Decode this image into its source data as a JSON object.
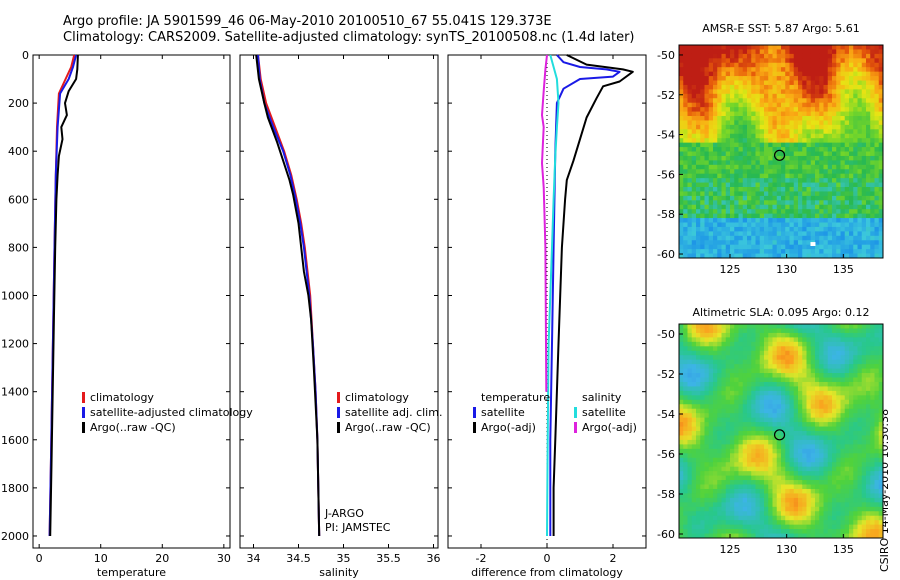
{
  "header": {
    "line1": "Argo profile: JA 5901599_46 06-May-2010 20100510_67 55.041S 129.373E",
    "line2": "Climatology: CARS2009. Satellite-adjusted climatology: synTS_20100508.nc (1.4d later)"
  },
  "footer": {
    "credit": "CSIRO 14-May-2010 10:30:38"
  },
  "colors": {
    "climatology": "#e41a1c",
    "satellite": "#1a1ae6",
    "argo": "#000000",
    "cyan": "#22dddd",
    "magenta": "#dd22dd"
  },
  "chart_data": [
    {
      "type": "line",
      "name": "temperature-profile",
      "xlabel": "temperature",
      "xlim": [
        -1,
        31
      ],
      "ylim": [
        2050,
        0
      ],
      "xticks": [
        0,
        10,
        20,
        30
      ],
      "yticks": [
        0,
        200,
        400,
        600,
        800,
        1000,
        1200,
        1400,
        1600,
        1800,
        2000
      ],
      "legend": {
        "position": "lower-right",
        "entries": [
          "climatology",
          "satellite-adjusted climatology",
          "Argo(..raw -QC)"
        ]
      },
      "series": [
        {
          "name": "climatology",
          "color": "#e41a1c",
          "points": [
            [
              5.7,
              0
            ],
            [
              5.2,
              50
            ],
            [
              4.3,
              100
            ],
            [
              3.2,
              160
            ],
            [
              2.9,
              300
            ],
            [
              2.7,
              500
            ],
            [
              2.5,
              800
            ],
            [
              2.3,
              1100
            ],
            [
              2.1,
              1400
            ],
            [
              1.9,
              1700
            ],
            [
              1.7,
              2000
            ]
          ]
        },
        {
          "name": "satellite-adjusted climatology",
          "color": "#1a1ae6",
          "points": [
            [
              6.0,
              0
            ],
            [
              5.5,
              50
            ],
            [
              4.8,
              100
            ],
            [
              3.4,
              160
            ],
            [
              3.0,
              300
            ],
            [
              2.7,
              500
            ],
            [
              2.5,
              800
            ],
            [
              2.3,
              1100
            ],
            [
              2.1,
              1400
            ],
            [
              1.9,
              1700
            ],
            [
              1.7,
              2000
            ]
          ]
        },
        {
          "name": "Argo(..raw -QC)",
          "color": "#000000",
          "points": [
            [
              6.3,
              0
            ],
            [
              6.2,
              60
            ],
            [
              6.0,
              100
            ],
            [
              4.8,
              150
            ],
            [
              4.2,
              200
            ],
            [
              4.5,
              250
            ],
            [
              3.6,
              300
            ],
            [
              3.8,
              350
            ],
            [
              3.2,
              420
            ],
            [
              3.0,
              500
            ],
            [
              2.8,
              600
            ],
            [
              2.6,
              800
            ],
            [
              2.4,
              1100
            ],
            [
              2.2,
              1400
            ],
            [
              2.0,
              1700
            ],
            [
              1.8,
              2000
            ]
          ]
        }
      ]
    },
    {
      "type": "line",
      "name": "salinity-profile",
      "xlabel": "salinity",
      "xlim": [
        33.85,
        36.05
      ],
      "ylim": [
        2050,
        0
      ],
      "xticks": [
        34,
        34.5,
        35,
        35.5,
        36
      ],
      "yticks": [
        0,
        200,
        400,
        600,
        800,
        1000,
        1200,
        1400,
        1600,
        1800,
        2000
      ],
      "legend": {
        "position": "lower-right",
        "entries": [
          "climatology",
          "satellite adj. clim.",
          "Argo(..raw -QC)"
        ]
      },
      "annotations": [
        "J-ARGO",
        "PI: JAMSTEC"
      ],
      "series": [
        {
          "name": "climatology",
          "color": "#e41a1c",
          "points": [
            [
              34.05,
              0
            ],
            [
              34.08,
              100
            ],
            [
              34.14,
              200
            ],
            [
              34.24,
              300
            ],
            [
              34.34,
              400
            ],
            [
              34.42,
              500
            ],
            [
              34.48,
              600
            ],
            [
              34.53,
              700
            ],
            [
              34.57,
              800
            ],
            [
              34.6,
              900
            ],
            [
              34.63,
              1000
            ],
            [
              34.66,
              1200
            ],
            [
              34.69,
              1400
            ],
            [
              34.71,
              1600
            ],
            [
              34.72,
              1800
            ],
            [
              34.73,
              2000
            ]
          ]
        },
        {
          "name": "satellite adj. clim.",
          "color": "#1a1ae6",
          "points": [
            [
              34.05,
              0
            ],
            [
              34.07,
              100
            ],
            [
              34.12,
              200
            ],
            [
              34.22,
              300
            ],
            [
              34.33,
              400
            ],
            [
              34.41,
              500
            ],
            [
              34.47,
              600
            ],
            [
              34.52,
              700
            ],
            [
              34.56,
              800
            ],
            [
              34.59,
              900
            ],
            [
              34.62,
              1000
            ],
            [
              34.66,
              1200
            ],
            [
              34.69,
              1400
            ],
            [
              34.71,
              1600
            ],
            [
              34.72,
              1800
            ],
            [
              34.73,
              2000
            ]
          ]
        },
        {
          "name": "Argo(..raw -QC)",
          "color": "#000000",
          "points": [
            [
              34.03,
              0
            ],
            [
              34.06,
              100
            ],
            [
              34.12,
              200
            ],
            [
              34.16,
              260
            ],
            [
              34.2,
              300
            ],
            [
              34.26,
              360
            ],
            [
              34.33,
              440
            ],
            [
              34.4,
              520
            ],
            [
              34.44,
              580
            ],
            [
              34.5,
              700
            ],
            [
              34.53,
              800
            ],
            [
              34.56,
              900
            ],
            [
              34.61,
              1000
            ],
            [
              34.64,
              1100
            ],
            [
              34.67,
              1300
            ],
            [
              34.69,
              1450
            ],
            [
              34.71,
              1600
            ],
            [
              34.72,
              1800
            ],
            [
              34.73,
              2000
            ]
          ]
        }
      ]
    },
    {
      "type": "line",
      "name": "difference-profile",
      "xlabel": "difference from climatology",
      "xlim": [
        -3,
        3
      ],
      "ylim": [
        2050,
        0
      ],
      "xticks": [
        -2,
        0,
        2
      ],
      "yticks": [
        0,
        200,
        400,
        600,
        800,
        1000,
        1200,
        1400,
        1600,
        1800,
        2000
      ],
      "legend": {
        "position": "lower-right",
        "headers": [
          "temperature",
          "salinity"
        ],
        "entries": [
          "satellite",
          "Argo(-adj)",
          "satellite",
          "Argo(-adj)"
        ]
      },
      "series": [
        {
          "name": "temperature satellite",
          "color": "#1a1ae6",
          "points": [
            [
              0.3,
              0
            ],
            [
              0.5,
              30
            ],
            [
              1.0,
              50
            ],
            [
              1.8,
              60
            ],
            [
              2.2,
              70
            ],
            [
              2.0,
              90
            ],
            [
              1.0,
              100
            ],
            [
              0.5,
              140
            ],
            [
              0.3,
              200
            ],
            [
              0.25,
              400
            ],
            [
              0.2,
              800
            ],
            [
              0.15,
              1200
            ],
            [
              0.1,
              1600
            ],
            [
              0.1,
              2000
            ]
          ]
        },
        {
          "name": "temperature Argo(-adj)",
          "color": "#000000",
          "points": [
            [
              0.6,
              0
            ],
            [
              1.2,
              40
            ],
            [
              2.3,
              60
            ],
            [
              2.6,
              70
            ],
            [
              2.2,
              110
            ],
            [
              1.7,
              130
            ],
            [
              1.5,
              180
            ],
            [
              1.2,
              260
            ],
            [
              1.0,
              350
            ],
            [
              0.8,
              440
            ],
            [
              0.6,
              520
            ],
            [
              0.55,
              600
            ],
            [
              0.45,
              800
            ],
            [
              0.4,
              1000
            ],
            [
              0.35,
              1200
            ],
            [
              0.3,
              1400
            ],
            [
              0.25,
              1600
            ],
            [
              0.2,
              1800
            ],
            [
              0.2,
              2000
            ]
          ]
        },
        {
          "name": "salinity satellite",
          "color": "#22dddd",
          "points": [
            [
              0.1,
              0
            ],
            [
              0.3,
              100
            ],
            [
              0.35,
              200
            ],
            [
              0.3,
              300
            ],
            [
              0.25,
              420
            ],
            [
              0.2,
              600
            ],
            [
              0.15,
              800
            ],
            [
              0.1,
              1000
            ],
            [
              0.05,
              1200
            ],
            [
              0.02,
              1600
            ],
            [
              0.0,
              2000
            ]
          ]
        },
        {
          "name": "salinity Argo(-adj)",
          "color": "#dd22dd",
          "points": [
            [
              0.0,
              0
            ],
            [
              -0.05,
              60
            ],
            [
              -0.1,
              150
            ],
            [
              -0.15,
              250
            ],
            [
              -0.1,
              300
            ],
            [
              -0.12,
              360
            ],
            [
              -0.15,
              450
            ],
            [
              -0.1,
              550
            ],
            [
              -0.08,
              650
            ],
            [
              -0.05,
              800
            ],
            [
              -0.04,
              1000
            ],
            [
              -0.03,
              1200
            ],
            [
              -0.02,
              1400
            ]
          ]
        }
      ]
    },
    {
      "type": "heatmap",
      "name": "sst-map",
      "title": "AMSR-E SST: 5.87 Argo: 5.61",
      "xlim": [
        120.5,
        138.5
      ],
      "ylim": [
        -60.2,
        -49.5
      ],
      "xticks": [
        125,
        130,
        135
      ],
      "yticks": [
        -50,
        -52,
        -54,
        -56,
        -58,
        -60
      ],
      "marker": [
        129.373,
        -55.041
      ],
      "nodata_below": -60.2
    },
    {
      "type": "heatmap",
      "name": "sla-map",
      "title": "Altimetric SLA: 0.095 Argo: 0.12",
      "xlim": [
        120.5,
        138.5
      ],
      "ylim": [
        -60.2,
        -49.5
      ],
      "xticks": [
        125,
        130,
        135
      ],
      "yticks": [
        -50,
        -52,
        -54,
        -56,
        -58,
        -60
      ],
      "marker": [
        129.373,
        -55.041
      ]
    }
  ]
}
